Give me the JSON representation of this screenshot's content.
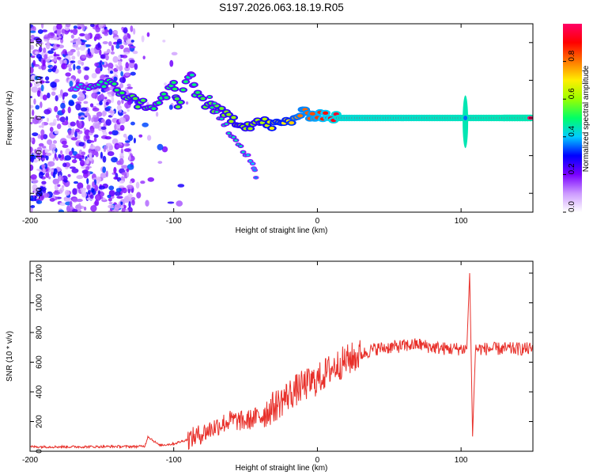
{
  "figure": {
    "title": "S197.2026.063.18.19.R05"
  },
  "chart_data": [
    {
      "type": "heatmap",
      "title": "S197.2026.063.18.19.R05",
      "xlabel": "Height of straight line (km)",
      "ylabel": "Frequency (Hz)",
      "xlim": [
        -200,
        150
      ],
      "ylim": [
        -25,
        25
      ],
      "xticks": [
        -200,
        -100,
        0,
        100
      ],
      "xtick_labels": [
        "-200",
        "-100",
        "0",
        "100"
      ],
      "yticks": [
        -20,
        -10,
        0,
        10,
        20
      ],
      "ytick_labels": [
        "-20",
        "-10",
        "0",
        "10",
        "20"
      ],
      "colorbar": {
        "label": "Normalized spectral amplitude",
        "range": [
          0,
          1
        ],
        "ticks": [
          0.0,
          0.2,
          0.4,
          0.6,
          0.8
        ],
        "tick_labels": [
          "0.0",
          "0.2",
          "0.4",
          "0.6",
          "0.8"
        ],
        "colors": [
          "#ffffff",
          "#cc99ff",
          "#7a00ff",
          "#0000ff",
          "#00ccff",
          "#00ff66",
          "#99ff00",
          "#ffee00",
          "#ff7700",
          "#ff0000",
          "#ff0066"
        ]
      },
      "ridge": [
        {
          "x": -170,
          "y": 8,
          "a": 0.4
        },
        {
          "x": -145,
          "y": 9,
          "a": 0.5
        },
        {
          "x": -125,
          "y": 4,
          "a": 0.55
        },
        {
          "x": -112,
          "y": 3,
          "a": 0.5
        },
        {
          "x": -100,
          "y": 9,
          "a": 0.5
        },
        {
          "x": -97,
          "y": 3,
          "a": 0.55
        },
        {
          "x": -88,
          "y": 12,
          "a": 0.45
        },
        {
          "x": -85,
          "y": 7,
          "a": 0.5
        },
        {
          "x": -78,
          "y": 4,
          "a": 0.55
        },
        {
          "x": -70,
          "y": 2,
          "a": 0.55
        },
        {
          "x": -60,
          "y": 0,
          "a": 0.6
        },
        {
          "x": -50,
          "y": -2,
          "a": 0.6
        },
        {
          "x": -40,
          "y": -1,
          "a": 0.6
        },
        {
          "x": -30,
          "y": -2,
          "a": 0.7
        },
        {
          "x": -20,
          "y": -1,
          "a": 0.7
        },
        {
          "x": -12,
          "y": 1,
          "a": 0.8
        },
        {
          "x": 0,
          "y": 1,
          "a": 0.85
        },
        {
          "x": 15,
          "y": 0,
          "a": 0.95
        },
        {
          "x": 150,
          "y": 0,
          "a": 1.0
        }
      ],
      "branch": [
        {
          "x": -75,
          "y": 5,
          "a": 0.5
        },
        {
          "x": -65,
          "y": -2,
          "a": 0.45
        },
        {
          "x": -55,
          "y": -6,
          "a": 0.45
        },
        {
          "x": -45,
          "y": -12,
          "a": 0.4
        },
        {
          "x": -42,
          "y": -16,
          "a": 0.35
        }
      ],
      "spike": {
        "x": 103,
        "y_range": [
          -8,
          6
        ]
      }
    },
    {
      "type": "line",
      "xlabel": "Height of straight line (km)",
      "ylabel": "SNR (10 * v/v)",
      "xlim": [
        -200,
        150
      ],
      "ylim": [
        0,
        1280
      ],
      "xticks": [
        -200,
        -100,
        0,
        100
      ],
      "xtick_labels": [
        "-200",
        "-100",
        "0",
        "100"
      ],
      "yticks": [
        0,
        200,
        400,
        600,
        800,
        1000,
        1200
      ],
      "ytick_labels": [
        "0",
        "200",
        "400",
        "600",
        "800",
        "1000",
        "1200"
      ],
      "line_color": "#e8302a",
      "series": [
        {
          "name": "SNR",
          "x": [
            -200,
            -180,
            -160,
            -140,
            -125,
            -120,
            -118,
            -110,
            -100,
            -90,
            -80,
            -70,
            -60,
            -50,
            -40,
            -30,
            -20,
            -10,
            0,
            10,
            20,
            30,
            40,
            50,
            60,
            70,
            80,
            90,
            100,
            104,
            106,
            108,
            110,
            120,
            130,
            140,
            150
          ],
          "y": [
            30,
            30,
            30,
            32,
            32,
            35,
            100,
            40,
            50,
            80,
            120,
            170,
            210,
            200,
            240,
            300,
            380,
            440,
            480,
            560,
            610,
            650,
            690,
            700,
            710,
            720,
            700,
            690,
            690,
            690,
            1200,
            100,
            690,
            690,
            690,
            690,
            690
          ]
        }
      ]
    }
  ]
}
